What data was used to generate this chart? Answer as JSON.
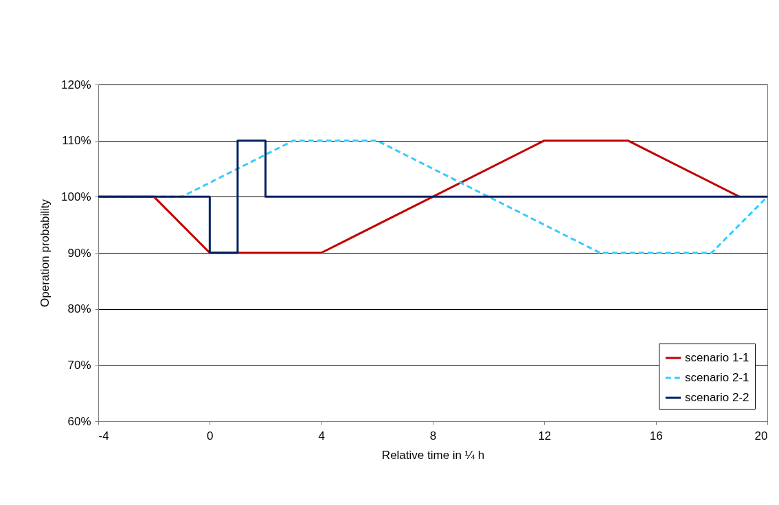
{
  "chart_data": {
    "type": "line",
    "xlabel": "Relative time in ¼ h",
    "ylabel": "Operation probability",
    "xlim": [
      -4,
      20
    ],
    "xticks": [
      -4,
      0,
      4,
      8,
      12,
      16,
      20
    ],
    "ylim": [
      60,
      120
    ],
    "yticks": [
      {
        "value": 60,
        "label": "60%"
      },
      {
        "value": 70,
        "label": "70%"
      },
      {
        "value": 80,
        "label": "80%"
      },
      {
        "value": 90,
        "label": "90%"
      },
      {
        "value": 100,
        "label": "100%"
      },
      {
        "value": 110,
        "label": "110%"
      },
      {
        "value": 120,
        "label": "120%"
      }
    ],
    "grid": "y",
    "legend": "bottom right",
    "marker": "none",
    "series": [
      {
        "name": "scenario 1-1",
        "color": "#c00000",
        "line_style": "solid",
        "x": [
          -4,
          -2,
          0,
          4,
          12,
          15,
          19
        ],
        "values": [
          100,
          100,
          90,
          90,
          110,
          110,
          100
        ]
      },
      {
        "name": "scenario 2-1",
        "color": "#33ccff",
        "line_style": "dashed",
        "x": [
          -4,
          -1,
          3,
          6,
          14,
          18,
          20
        ],
        "values": [
          100,
          100,
          110,
          110,
          90,
          90,
          100
        ]
      },
      {
        "name": "scenario 2-2",
        "color": "#002060",
        "line_style": "solid",
        "x": [
          -4,
          0,
          0,
          1,
          1,
          2,
          2,
          20
        ],
        "values": [
          100,
          100,
          90,
          90,
          110,
          110,
          100,
          100
        ]
      }
    ]
  }
}
